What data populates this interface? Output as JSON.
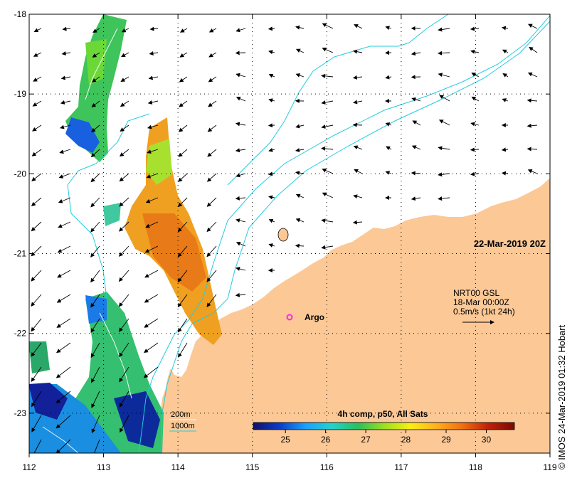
{
  "map": {
    "date_label": "22-Mar-2019 20Z",
    "product_label": "4h comp, p50, All Sats",
    "credit": "© IMOS 24-Mar-2019 01:32 Hobart",
    "current_legend": {
      "line1": "NRT00 GSL",
      "line2": "18-Mar 00:00Z",
      "line3": "0.5m/s (1kt 24h)"
    },
    "argo": {
      "label": "Argo",
      "lon": 115.5,
      "lat": -21.8,
      "color": "#ff22ff"
    },
    "bathymetry_legend": {
      "contour1": "200m",
      "contour2": "1000m",
      "color": "#22ccdd"
    },
    "land_color": "#fbc896",
    "axes": {
      "x_ticks": [
        "112",
        "113",
        "114",
        "115",
        "116",
        "117",
        "118",
        "119"
      ],
      "y_ticks": [
        "-18",
        "-19",
        "-20",
        "-21",
        "-22",
        "-23"
      ],
      "lon_range": [
        112,
        119
      ],
      "lat_range": [
        -23.5,
        -18
      ]
    },
    "colorbar": {
      "ticks": [
        "25",
        "26",
        "27",
        "28",
        "29",
        "30"
      ],
      "range": [
        24.2,
        30.7
      ],
      "stops": [
        "#10106a",
        "#0a3cc8",
        "#1aa0ff",
        "#22d2d0",
        "#28c060",
        "#9ae020",
        "#f8f010",
        "#ffb020",
        "#f07010",
        "#c02008",
        "#7a0a04"
      ]
    }
  }
}
